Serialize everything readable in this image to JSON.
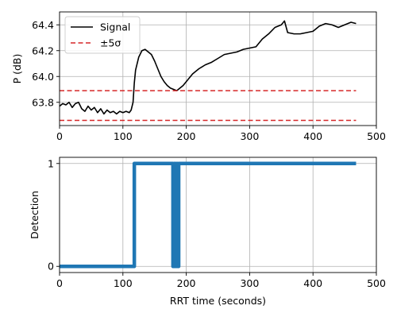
{
  "chart_data": [
    {
      "type": "line",
      "xlabel": "",
      "ylabel": "P (dB)",
      "xlim": [
        0,
        500
      ],
      "ylim": [
        63.62,
        64.5
      ],
      "xticks": [
        0,
        100,
        200,
        300,
        400,
        500
      ],
      "xtick_labels": [
        "0",
        "100",
        "200",
        "300",
        "400",
        "500"
      ],
      "yticks": [
        63.8,
        64.0,
        64.2,
        64.4
      ],
      "ytick_labels": [
        "63.8",
        "64.0",
        "64.2",
        "64.4"
      ],
      "grid": true,
      "legend": {
        "placement": "top-left",
        "entries": [
          {
            "label": "Signal",
            "color": "#000000",
            "style": "solid"
          },
          {
            "label": "±5σ",
            "color": "#d62728",
            "style": "dashed"
          }
        ]
      },
      "series": [
        {
          "name": "Signal",
          "color": "#000000",
          "x": [
            0,
            5,
            10,
            15,
            20,
            25,
            30,
            35,
            40,
            45,
            50,
            55,
            60,
            65,
            70,
            75,
            80,
            85,
            90,
            95,
            100,
            105,
            110,
            113,
            116,
            118,
            120,
            125,
            130,
            135,
            140,
            145,
            150,
            155,
            160,
            165,
            170,
            175,
            180,
            185,
            190,
            195,
            200,
            210,
            220,
            230,
            240,
            250,
            260,
            270,
            280,
            290,
            300,
            310,
            320,
            330,
            340,
            350,
            355,
            360,
            370,
            380,
            390,
            400,
            410,
            420,
            430,
            440,
            450,
            460,
            468
          ],
          "y": [
            63.77,
            63.79,
            63.78,
            63.8,
            63.76,
            63.79,
            63.8,
            63.75,
            63.73,
            63.77,
            63.74,
            63.76,
            63.72,
            63.75,
            63.71,
            63.74,
            63.72,
            63.73,
            63.71,
            63.73,
            63.72,
            63.73,
            63.72,
            63.74,
            63.8,
            63.95,
            64.05,
            64.15,
            64.2,
            64.21,
            64.19,
            64.17,
            64.12,
            64.06,
            64.0,
            63.96,
            63.93,
            63.91,
            63.9,
            63.89,
            63.91,
            63.93,
            63.96,
            64.02,
            64.06,
            64.09,
            64.11,
            64.14,
            64.17,
            64.18,
            64.19,
            64.21,
            64.22,
            64.23,
            64.29,
            64.33,
            64.38,
            64.4,
            64.43,
            64.34,
            64.33,
            64.33,
            64.34,
            64.35,
            64.39,
            64.41,
            64.4,
            64.38,
            64.4,
            64.42,
            64.41
          ]
        },
        {
          "name": "±5σ",
          "color": "#d62728",
          "x": [
            0,
            468
          ],
          "y": [
            63.89,
            63.89
          ]
        },
        {
          "name": "±5σ",
          "color": "#d62728",
          "x": [
            0,
            468
          ],
          "y": [
            63.66,
            63.66
          ]
        }
      ]
    },
    {
      "type": "line",
      "xlabel": "RRT time (seconds)",
      "ylabel": "Detection",
      "xlim": [
        0,
        500
      ],
      "ylim": [
        -0.06,
        1.06
      ],
      "xticks": [
        0,
        100,
        200,
        300,
        400,
        500
      ],
      "xtick_labels": [
        "0",
        "100",
        "200",
        "300",
        "400",
        "500"
      ],
      "yticks": [
        0,
        1
      ],
      "ytick_labels": [
        "0",
        "1"
      ],
      "grid": true,
      "series": [
        {
          "color": "#1f77b4",
          "x": [
            0,
            118,
            118,
            179,
            179,
            181,
            181,
            183,
            183,
            185,
            185,
            186,
            186,
            188,
            188,
            468
          ],
          "y": [
            0,
            0,
            1,
            1,
            0,
            0,
            1,
            1,
            0,
            0,
            1,
            1,
            0,
            0,
            1,
            1
          ]
        }
      ]
    }
  ]
}
